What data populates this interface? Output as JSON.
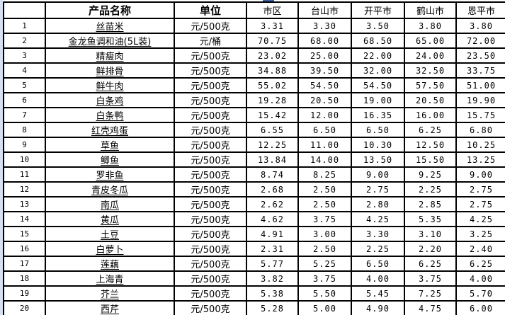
{
  "app": {
    "description_label": "agricultural product price comparison table"
  },
  "colors": {
    "border": "#000000",
    "background": "#ffffff",
    "left_strip": "#d6e0f0",
    "top_artifact": "#3a5fa8",
    "text": "#000000"
  },
  "table": {
    "headers": [
      "",
      "产品名称",
      "单位",
      "市区",
      "台山市",
      "开平市",
      "鹤山市",
      "恩平市"
    ],
    "rows": [
      {
        "no": "1",
        "name": "丝苗米",
        "unit": "元/500克",
        "prices": [
          "3.31",
          "3.30",
          "3.50",
          "3.80",
          "3.80"
        ]
      },
      {
        "no": "2",
        "name": "金龙鱼调和油(5L装)",
        "unit": "元/桶",
        "prices": [
          "70.75",
          "68.00",
          "68.50",
          "65.00",
          "72.00"
        ]
      },
      {
        "no": "3",
        "name": "精瘦肉",
        "unit": "元/500克",
        "prices": [
          "23.02",
          "25.00",
          "22.00",
          "24.00",
          "23.50"
        ]
      },
      {
        "no": "4",
        "name": "鲜排骨",
        "unit": "元/500克",
        "prices": [
          "34.88",
          "39.50",
          "32.00",
          "32.50",
          "33.75"
        ]
      },
      {
        "no": "5",
        "name": "鲜牛肉",
        "unit": "元/500克",
        "prices": [
          "55.02",
          "54.50",
          "54.50",
          "57.50",
          "51.00"
        ]
      },
      {
        "no": "6",
        "name": "白条鸡",
        "unit": "元/500克",
        "prices": [
          "19.28",
          "20.50",
          "19.00",
          "20.50",
          "19.90"
        ]
      },
      {
        "no": "7",
        "name": "白条鸭",
        "unit": "元/500克",
        "prices": [
          "15.42",
          "12.00",
          "16.35",
          "16.00",
          "15.75"
        ]
      },
      {
        "no": "8",
        "name": "红壳鸡蛋",
        "unit": "元/500克",
        "prices": [
          "6.55",
          "6.50",
          "6.50",
          "6.25",
          "6.80"
        ]
      },
      {
        "no": "9",
        "name": "草鱼",
        "unit": "元/500克",
        "prices": [
          "12.25",
          "11.00",
          "10.30",
          "12.50",
          "10.25"
        ]
      },
      {
        "no": "10",
        "name": "鲫鱼",
        "unit": "元/500克",
        "prices": [
          "13.84",
          "14.00",
          "13.50",
          "15.50",
          "13.25"
        ]
      },
      {
        "no": "11",
        "name": "罗非鱼",
        "unit": "元/500克",
        "prices": [
          "8.74",
          "8.25",
          "9.00",
          "9.25",
          "9.00"
        ]
      },
      {
        "no": "12",
        "name": "青皮冬瓜",
        "unit": "元/500克",
        "prices": [
          "2.68",
          "2.50",
          "2.75",
          "2.25",
          "2.75"
        ]
      },
      {
        "no": "13",
        "name": "南瓜",
        "unit": "元/500克",
        "prices": [
          "2.62",
          "2.50",
          "2.80",
          "2.85",
          "2.75"
        ]
      },
      {
        "no": "14",
        "name": "黄瓜",
        "unit": "元/500克",
        "prices": [
          "4.62",
          "3.75",
          "4.25",
          "5.35",
          "4.25"
        ]
      },
      {
        "no": "15",
        "name": "土豆",
        "unit": "元/500克",
        "prices": [
          "4.91",
          "3.00",
          "3.30",
          "3.10",
          "3.25"
        ]
      },
      {
        "no": "16",
        "name": "白萝卜",
        "unit": "元/500克",
        "prices": [
          "2.31",
          "2.50",
          "2.25",
          "2.20",
          "2.40"
        ]
      },
      {
        "no": "17",
        "name": "莲藕",
        "unit": "元/500克",
        "prices": [
          "5.77",
          "5.25",
          "6.50",
          "6.25",
          "6.25"
        ]
      },
      {
        "no": "18",
        "name": "上海青",
        "unit": "元/500克",
        "prices": [
          "3.82",
          "3.75",
          "4.00",
          "3.75",
          "4.00"
        ]
      },
      {
        "no": "19",
        "name": "芥兰",
        "unit": "元/500克",
        "prices": [
          "5.38",
          "5.50",
          "5.45",
          "7.25",
          "5.70"
        ]
      },
      {
        "no": "20",
        "name": "西芹",
        "unit": "元/500克",
        "prices": [
          "5.28",
          "5.00",
          "4.90",
          "4.75",
          "6.00"
        ]
      }
    ]
  }
}
